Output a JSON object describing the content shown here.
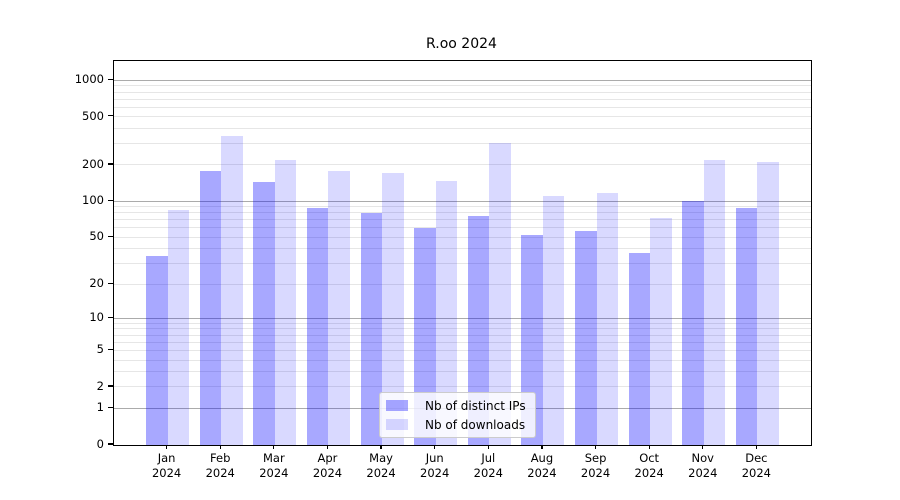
{
  "chart_data": {
    "type": "bar",
    "title": "R.oo 2024",
    "scale": "log1p",
    "y_top": 1440,
    "y_ticks": [
      0,
      1,
      2,
      5,
      10,
      20,
      50,
      100,
      200,
      500,
      1000
    ],
    "y_major_gridlines": [
      1,
      10,
      100,
      1000
    ],
    "y_minor_gridlines": [
      2,
      3,
      4,
      5,
      6,
      7,
      8,
      9,
      20,
      30,
      40,
      50,
      60,
      70,
      80,
      90,
      200,
      300,
      400,
      500,
      600,
      700,
      800,
      900
    ],
    "x_tick_labels": [
      "Jan\n2024",
      "Feb\n2024",
      "Mar\n2024",
      "Apr\n2024",
      "May\n2024",
      "Jun\n2024",
      "Jul\n2024",
      "Aug\n2024",
      "Sep\n2024",
      "Oct\n2024",
      "Nov\n2024",
      "Dec\n2024"
    ],
    "series": [
      {
        "name": "Nb of distinct IPs",
        "color": "rgba(0, 0, 255, 0.34)",
        "values": [
          35,
          180,
          144,
          88,
          80,
          60,
          76,
          52,
          57,
          37,
          101,
          88
        ]
      },
      {
        "name": "Nb of downloads",
        "color": "rgba(0, 0, 255, 0.15)",
        "values": [
          85,
          350,
          221,
          177,
          172,
          148,
          303,
          110,
          117,
          72,
          218,
          210
        ]
      }
    ],
    "legend_position": "bottom-center",
    "colors": {
      "grid_major": "#ababab",
      "grid_minor": "#e6e6e6",
      "frame": "#000000"
    },
    "xlabel": "",
    "ylabel": ""
  }
}
